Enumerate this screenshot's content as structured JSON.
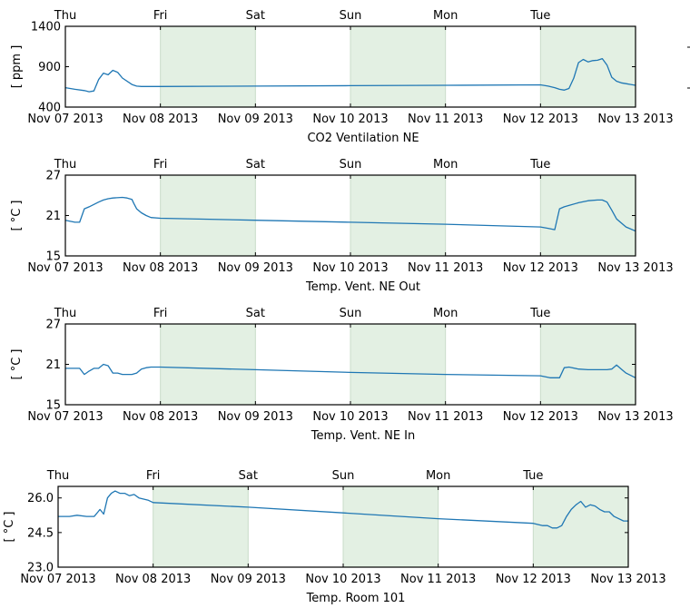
{
  "colors": {
    "line": "#1f77b4",
    "shade": "#e3f0e3",
    "shade_edge": "#c9dcc9"
  },
  "chart_data": [
    {
      "type": "line",
      "title": "CO2 Ventilation NE",
      "ylabel": "[ ppm ]",
      "ylim": [
        400,
        1400
      ],
      "yticks": [
        "400",
        "900",
        "1400"
      ],
      "ytick_values": [
        400,
        900,
        1400
      ],
      "x_range_days": [
        0,
        6
      ],
      "top_ticks": [
        "Thu",
        "Fri",
        "Sat",
        "Sun",
        "Mon",
        "Tue"
      ],
      "bottom_ticks": [
        "Nov 07 2013",
        "Nov 08 2013",
        "Nov 09 2013",
        "Nov 10 2013",
        "Nov 11 2013",
        "Nov 12 2013",
        "Nov 13 2013"
      ],
      "shaded_day_ranges": [
        [
          1,
          2
        ],
        [
          3,
          4
        ],
        [
          5,
          6
        ]
      ],
      "series": [
        {
          "x": [
            0,
            0.1,
            0.2,
            0.25,
            0.3,
            0.35,
            0.4,
            0.45,
            0.5,
            0.55,
            0.6,
            0.7,
            0.75,
            0.8,
            0.85,
            1.0,
            2.0,
            3.0,
            4.0,
            5.0,
            5.08,
            5.15,
            5.2,
            5.25,
            5.3,
            5.35,
            5.4,
            5.45,
            5.5,
            5.55,
            5.6,
            5.65,
            5.7,
            5.75,
            5.8,
            5.85,
            5.9,
            5.95,
            6.0
          ],
          "y": [
            640,
            620,
            605,
            590,
            600,
            740,
            820,
            800,
            855,
            830,
            760,
            680,
            660,
            655,
            655,
            655,
            660,
            665,
            670,
            675,
            660,
            640,
            620,
            610,
            630,
            760,
            950,
            990,
            960,
            975,
            980,
            1000,
            920,
            770,
            720,
            700,
            690,
            680,
            670
          ]
        }
      ]
    },
    {
      "type": "line",
      "title": "Temp. Vent. NE Out",
      "ylabel": "[ °C ]",
      "ylim": [
        15,
        27
      ],
      "yticks": [
        "15",
        "21",
        "27"
      ],
      "ytick_values": [
        15,
        21,
        27
      ],
      "x_range_days": [
        0,
        6
      ],
      "top_ticks": [
        "Thu",
        "Fri",
        "Sat",
        "Sun",
        "Mon",
        "Tue"
      ],
      "bottom_ticks": [
        "Nov 07 2013",
        "Nov 08 2013",
        "Nov 09 2013",
        "Nov 10 2013",
        "Nov 11 2013",
        "Nov 12 2013",
        "Nov 13 2013"
      ],
      "shaded_day_ranges": [
        [
          1,
          2
        ],
        [
          3,
          4
        ],
        [
          5,
          6
        ]
      ],
      "series": [
        {
          "x": [
            0,
            0.1,
            0.15,
            0.2,
            0.25,
            0.35,
            0.4,
            0.45,
            0.5,
            0.6,
            0.65,
            0.7,
            0.72,
            0.75,
            0.8,
            0.85,
            0.9,
            1.0,
            2.0,
            3.0,
            4.0,
            5.0,
            5.08,
            5.15,
            5.2,
            5.25,
            5.3,
            5.4,
            5.5,
            5.6,
            5.65,
            5.7,
            5.75,
            5.8,
            5.9,
            6.0
          ],
          "y": [
            20.3,
            20.0,
            20.0,
            22.0,
            22.3,
            23.0,
            23.3,
            23.5,
            23.6,
            23.7,
            23.6,
            23.4,
            22.8,
            22.0,
            21.4,
            21.0,
            20.7,
            20.6,
            20.3,
            20.0,
            19.7,
            19.3,
            19.1,
            18.9,
            22.0,
            22.3,
            22.5,
            22.9,
            23.2,
            23.3,
            23.3,
            23.0,
            21.8,
            20.5,
            19.3,
            18.7
          ]
        }
      ]
    },
    {
      "type": "line",
      "title": "Temp. Vent. NE In",
      "ylabel": "[ °C ]",
      "ylim": [
        15,
        27
      ],
      "yticks": [
        "15",
        "21",
        "27"
      ],
      "ytick_values": [
        15,
        21,
        27
      ],
      "x_range_days": [
        0,
        6
      ],
      "top_ticks": [
        "Thu",
        "Fri",
        "Sat",
        "Sun",
        "Mon",
        "Tue"
      ],
      "bottom_ticks": [
        "Nov 07 2013",
        "Nov 08 2013",
        "Nov 09 2013",
        "Nov 10 2013",
        "Nov 11 2013",
        "Nov 12 2013",
        "Nov 13 2013"
      ],
      "shaded_day_ranges": [
        [
          1,
          2
        ],
        [
          3,
          4
        ],
        [
          5,
          6
        ]
      ],
      "series": [
        {
          "x": [
            0,
            0.1,
            0.15,
            0.2,
            0.25,
            0.3,
            0.35,
            0.4,
            0.45,
            0.5,
            0.55,
            0.6,
            0.65,
            0.7,
            0.75,
            0.8,
            0.85,
            0.9,
            1.0,
            2.0,
            3.0,
            4.0,
            5.0,
            5.1,
            5.2,
            5.25,
            5.3,
            5.4,
            5.5,
            5.6,
            5.7,
            5.75,
            5.8,
            5.85,
            5.9,
            6.0
          ],
          "y": [
            20.4,
            20.4,
            20.4,
            19.5,
            20.0,
            20.4,
            20.4,
            21.0,
            20.8,
            19.7,
            19.7,
            19.5,
            19.5,
            19.5,
            19.7,
            20.3,
            20.5,
            20.6,
            20.6,
            20.2,
            19.8,
            19.5,
            19.3,
            19.0,
            19.0,
            20.5,
            20.6,
            20.3,
            20.2,
            20.2,
            20.2,
            20.3,
            20.9,
            20.3,
            19.7,
            19.0
          ]
        }
      ]
    },
    {
      "type": "line",
      "title": "Temp. Room 101",
      "ylabel": "[ °C ]",
      "ylim": [
        23.0,
        26.5
      ],
      "yticks": [
        "23.0",
        "24.5",
        "26.0"
      ],
      "ytick_values": [
        23.0,
        24.5,
        26.0
      ],
      "x_range_days": [
        0,
        6
      ],
      "top_ticks": [
        "Thu",
        "Fri",
        "Sat",
        "Sun",
        "Mon",
        "Tue"
      ],
      "bottom_ticks": [
        "Nov 07 2013",
        "Nov 08 2013",
        "Nov 09 2013",
        "Nov 10 2013",
        "Nov 11 2013",
        "Nov 12 2013",
        "Nov 13 2013"
      ],
      "shaded_day_ranges": [
        [
          1,
          2
        ],
        [
          3,
          4
        ],
        [
          5,
          6
        ]
      ],
      "series": [
        {
          "x": [
            0,
            0.12,
            0.2,
            0.3,
            0.38,
            0.42,
            0.44,
            0.48,
            0.52,
            0.56,
            0.6,
            0.65,
            0.7,
            0.75,
            0.8,
            0.85,
            0.95,
            1.0,
            2.0,
            3.0,
            4.0,
            5.0,
            5.1,
            5.15,
            5.2,
            5.25,
            5.3,
            5.35,
            5.4,
            5.45,
            5.5,
            5.55,
            5.6,
            5.65,
            5.7,
            5.75,
            5.8,
            5.85,
            5.9,
            5.95,
            6.0
          ],
          "y": [
            25.2,
            25.2,
            25.25,
            25.2,
            25.2,
            25.4,
            25.5,
            25.3,
            26.0,
            26.2,
            26.3,
            26.2,
            26.2,
            26.1,
            26.15,
            26.0,
            25.9,
            25.8,
            25.6,
            25.35,
            25.1,
            24.9,
            24.8,
            24.8,
            24.7,
            24.7,
            24.8,
            25.2,
            25.5,
            25.7,
            25.85,
            25.6,
            25.7,
            25.65,
            25.5,
            25.4,
            25.4,
            25.2,
            25.1,
            25.0,
            25.0
          ]
        }
      ]
    }
  ]
}
